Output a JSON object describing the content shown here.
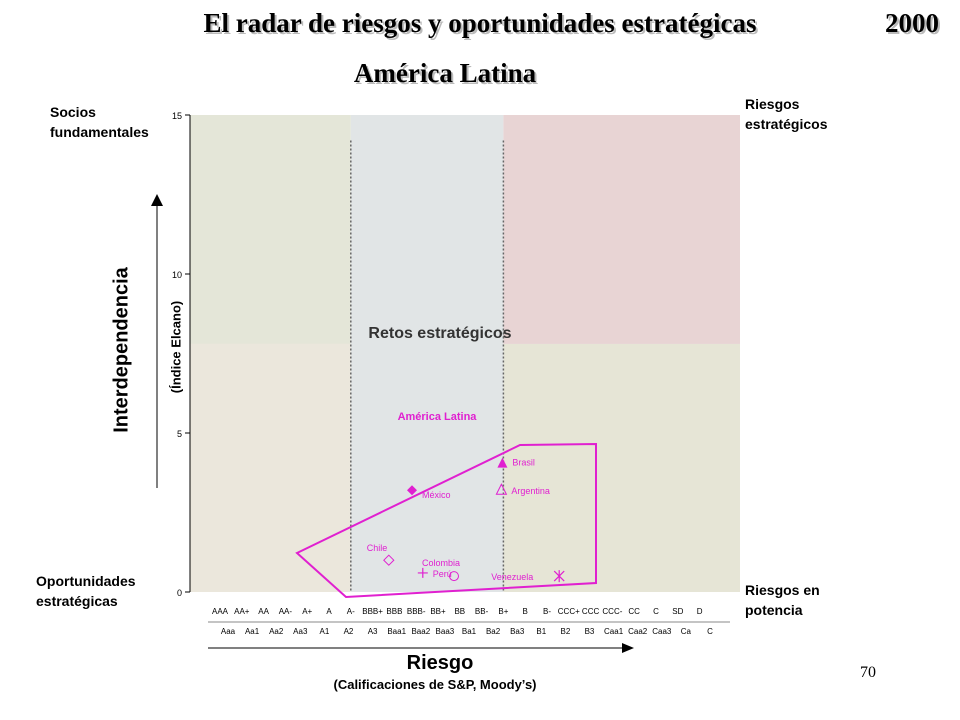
{
  "header": {
    "title": "El radar de riesgos y oportunidades estratégicas",
    "year": "2000",
    "subtitle": "América Latina"
  },
  "quadrants": {
    "top_left": "Socios fundamentales",
    "top_right": "Riesgos estratégicos",
    "bottom_left": "Oportunidades estratégicas",
    "bottom_right": "Riesgos en potencia",
    "center": "Retos estratégicos"
  },
  "axes": {
    "y_label": "Interdependencia",
    "y_sublabel": "(Índice Elcano)",
    "x_label": "Riesgo",
    "x_sublabel": "(Calificaciones de S&P, Moody’s)"
  },
  "page_number": "70",
  "chart_data": {
    "type": "scatter",
    "region_label": "América Latina",
    "ylim": [
      0,
      15
    ],
    "y_ticks": [
      "0",
      "5",
      "10",
      "15"
    ],
    "x_ticks_sp": [
      "AAA",
      "AA+",
      "AA",
      "AA-",
      "A+",
      "A",
      "A-",
      "BBB+",
      "BBB",
      "BBB-",
      "BB+",
      "BB",
      "BB-",
      "B+",
      "B",
      "B-",
      "CCC+",
      "CCC",
      "CCC-",
      "CC",
      "C",
      "SD",
      "D"
    ],
    "x_ticks_moodys": [
      "Aaa",
      "Aa1",
      "Aa2",
      "Aa3",
      "A1",
      "A2",
      "A3",
      "Baa1",
      "Baa2",
      "Baa3",
      "Ba1",
      "Ba2",
      "Ba3",
      "B1",
      "B2",
      "B3",
      "Caa1",
      "Caa2",
      "Caa3",
      "Ca",
      "C"
    ],
    "points": [
      {
        "name": "Brasil",
        "rating": "B+",
        "value": 4.1,
        "marker": "triangle-filled"
      },
      {
        "name": "México",
        "rating": "BB+",
        "value": 3.2,
        "marker": "diamond-filled"
      },
      {
        "name": "Argentina",
        "rating": "B+",
        "value": 3.2,
        "marker": "triangle-open"
      },
      {
        "name": "Chile",
        "rating": "A-",
        "value": 1.0,
        "marker": "diamond-open"
      },
      {
        "name": "Colombia",
        "rating": "BB+",
        "value": 0.5,
        "marker": "circle-open"
      },
      {
        "name": "Perú",
        "rating": "BB",
        "value": 0.6,
        "marker": "plus"
      },
      {
        "name": "Venezuela",
        "rating": "B",
        "value": 0.5,
        "marker": "star"
      }
    ],
    "colors": {
      "series": "#e020d0",
      "socios": "#e4e6d8",
      "retos": "#e1e5e6",
      "riesgos_estrategicos": "#e8d4d4",
      "oportunidades": "#ebe7dc",
      "riesgos_potencia": "#e6e5d6"
    }
  }
}
